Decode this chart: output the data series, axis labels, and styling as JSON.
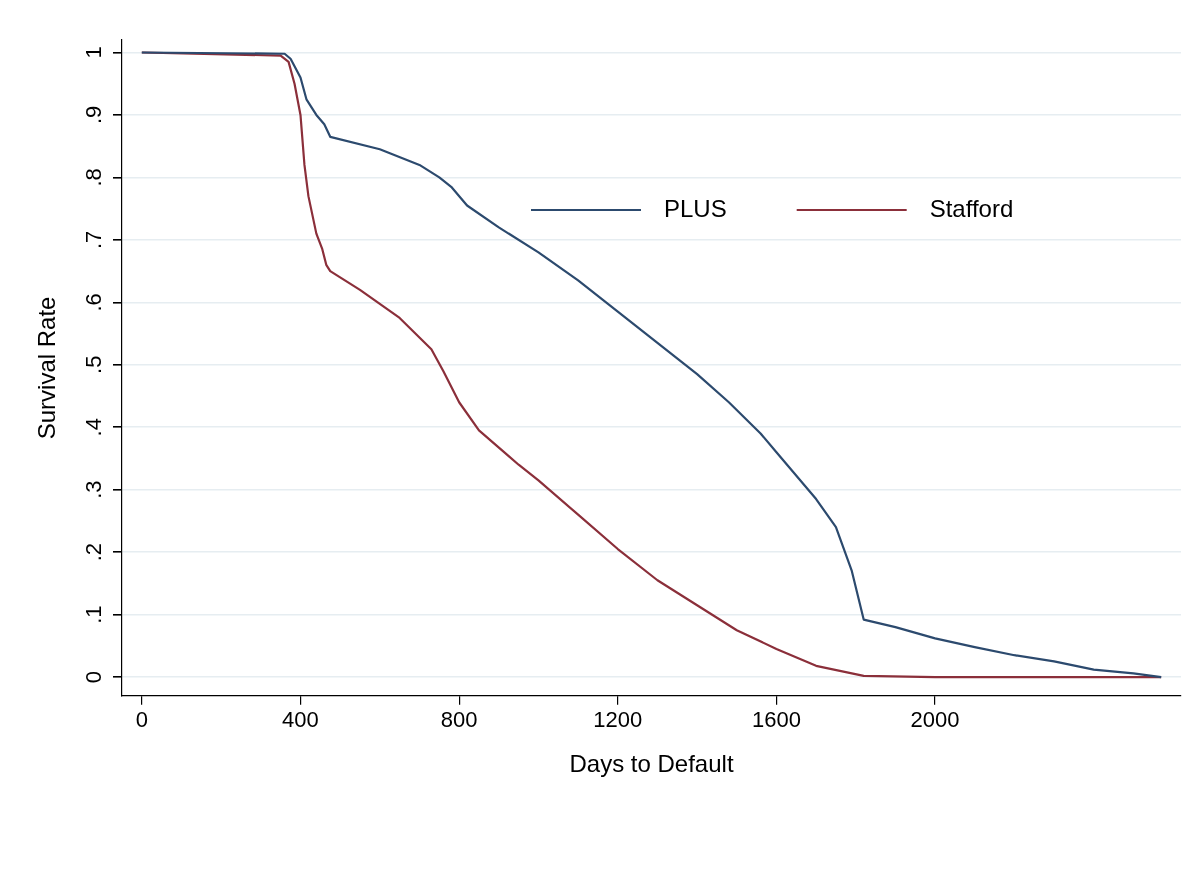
{
  "chart_data": {
    "type": "line",
    "xlabel": "Days to Default",
    "ylabel": "Survival Rate",
    "xlim": [
      -50,
      2620
    ],
    "ylim": [
      -0.03,
      1.02
    ],
    "xticks": [
      0,
      400,
      800,
      1200,
      1600,
      2000
    ],
    "yticks": [
      {
        "value": 0,
        "label": "0"
      },
      {
        "value": 0.1,
        "label": ".1"
      },
      {
        "value": 0.2,
        "label": ".2"
      },
      {
        "value": 0.3,
        "label": ".3"
      },
      {
        "value": 0.4,
        "label": ".4"
      },
      {
        "value": 0.5,
        "label": ".5"
      },
      {
        "value": 0.6,
        "label": ".6"
      },
      {
        "value": 0.7,
        "label": ".7"
      },
      {
        "value": 0.8,
        "label": ".8"
      },
      {
        "value": 0.9,
        "label": ".9"
      },
      {
        "value": 1,
        "label": "1"
      }
    ],
    "grid": "y",
    "legend": "top right",
    "marker": "none",
    "line_style": "solid",
    "series": [
      {
        "name": "PLUS",
        "color": "#2c4a6e",
        "x": [
          0,
          360,
          375,
          400,
          415,
          440,
          460,
          475,
          600,
          700,
          750,
          780,
          820,
          900,
          1000,
          1100,
          1200,
          1300,
          1400,
          1480,
          1560,
          1600,
          1700,
          1750,
          1790,
          1820,
          1900,
          2000,
          2100,
          2200,
          2300,
          2400,
          2500,
          2570
        ],
        "values": [
          1.0,
          0.998,
          0.99,
          0.96,
          0.925,
          0.9,
          0.885,
          0.865,
          0.845,
          0.82,
          0.8,
          0.785,
          0.755,
          0.72,
          0.68,
          0.635,
          0.585,
          0.535,
          0.485,
          0.44,
          0.39,
          0.36,
          0.285,
          0.24,
          0.17,
          0.092,
          0.08,
          0.062,
          0.048,
          0.035,
          0.025,
          0.012,
          0.006,
          0.0
        ]
      },
      {
        "name": "Stafford",
        "color": "#8b2f3a",
        "x": [
          0,
          350,
          370,
          385,
          400,
          410,
          420,
          440,
          455,
          465,
          475,
          550,
          650,
          730,
          760,
          800,
          850,
          950,
          1000,
          1100,
          1200,
          1300,
          1400,
          1500,
          1600,
          1700,
          1820,
          2000,
          2570
        ],
        "values": [
          1.0,
          0.995,
          0.985,
          0.95,
          0.9,
          0.82,
          0.77,
          0.71,
          0.685,
          0.66,
          0.65,
          0.62,
          0.575,
          0.525,
          0.49,
          0.44,
          0.395,
          0.34,
          0.315,
          0.26,
          0.205,
          0.155,
          0.115,
          0.075,
          0.045,
          0.018,
          0.002,
          0.0,
          0.0
        ]
      }
    ]
  }
}
